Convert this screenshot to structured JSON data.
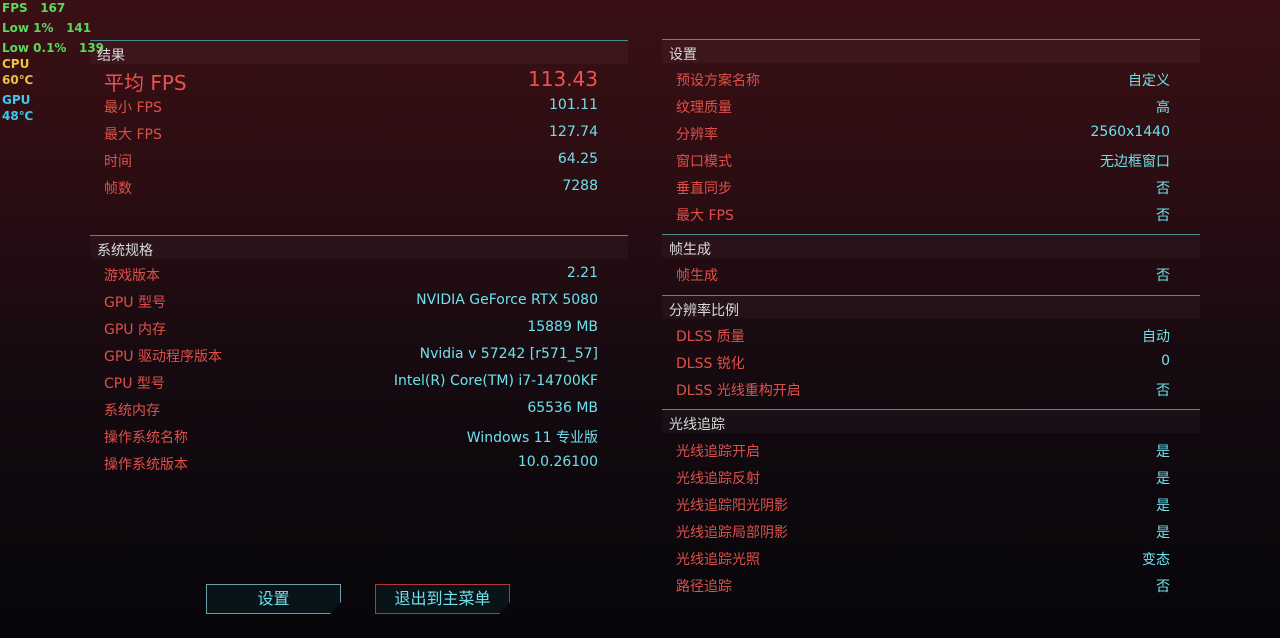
{
  "overlay": {
    "fps_label": "FPS",
    "fps": "167",
    "low1_label": "Low 1%",
    "low1": "141",
    "low01_label": "Low 0.1%",
    "low01": "139",
    "cpu_label": "CPU",
    "cpu_temp": "60℃",
    "gpu_label": "GPU",
    "gpu_temp": "48℃"
  },
  "results": {
    "title": "结果",
    "avg_label": "平均 FPS",
    "avg": "113.43",
    "rows": [
      [
        "最小 FPS",
        "101.11"
      ],
      [
        "最大 FPS",
        "127.74"
      ],
      [
        "时间",
        "64.25"
      ],
      [
        "帧数",
        "7288"
      ]
    ]
  },
  "system": {
    "title": "系统规格",
    "rows": [
      [
        "游戏版本",
        "2.21"
      ],
      [
        "GPU 型号",
        "NVIDIA GeForce RTX 5080"
      ],
      [
        "GPU 内存",
        "15889 MB"
      ],
      [
        "GPU 驱动程序版本",
        "Nvidia v 57242 [r571_57]"
      ],
      [
        "CPU 型号",
        "Intel(R) Core(TM) i7-14700KF"
      ],
      [
        "系统内存",
        "65536 MB"
      ],
      [
        "操作系统名称",
        "Windows 11 专业版"
      ],
      [
        "操作系统版本",
        "10.0.26100"
      ]
    ]
  },
  "settings": {
    "title": "设置",
    "rows": [
      [
        "预设方案名称",
        "自定义"
      ],
      [
        "纹理质量",
        "高"
      ],
      [
        "分辨率",
        "2560x1440"
      ],
      [
        "窗口模式",
        "无边框窗口"
      ],
      [
        "垂直同步",
        "否"
      ],
      [
        "最大 FPS",
        "否"
      ]
    ]
  },
  "framegen": {
    "title": "帧生成",
    "rows": [
      [
        "帧生成",
        "否"
      ]
    ]
  },
  "scaling": {
    "title": "分辨率比例",
    "rows": [
      [
        "DLSS 质量",
        "自动"
      ],
      [
        "DLSS 锐化",
        "0"
      ],
      [
        "DLSS 光线重构开启",
        "否"
      ]
    ]
  },
  "raytracing": {
    "title": "光线追踪",
    "rows": [
      [
        "光线追踪开启",
        "是"
      ],
      [
        "光线追踪反射",
        "是"
      ],
      [
        "光线追踪阳光阴影",
        "是"
      ],
      [
        "光线追踪局部阴影",
        "是"
      ],
      [
        "光线追踪光照",
        "变态"
      ],
      [
        "路径追踪",
        "否"
      ]
    ]
  },
  "buttons": {
    "settings": "设置",
    "exit": "退出到主菜单"
  }
}
